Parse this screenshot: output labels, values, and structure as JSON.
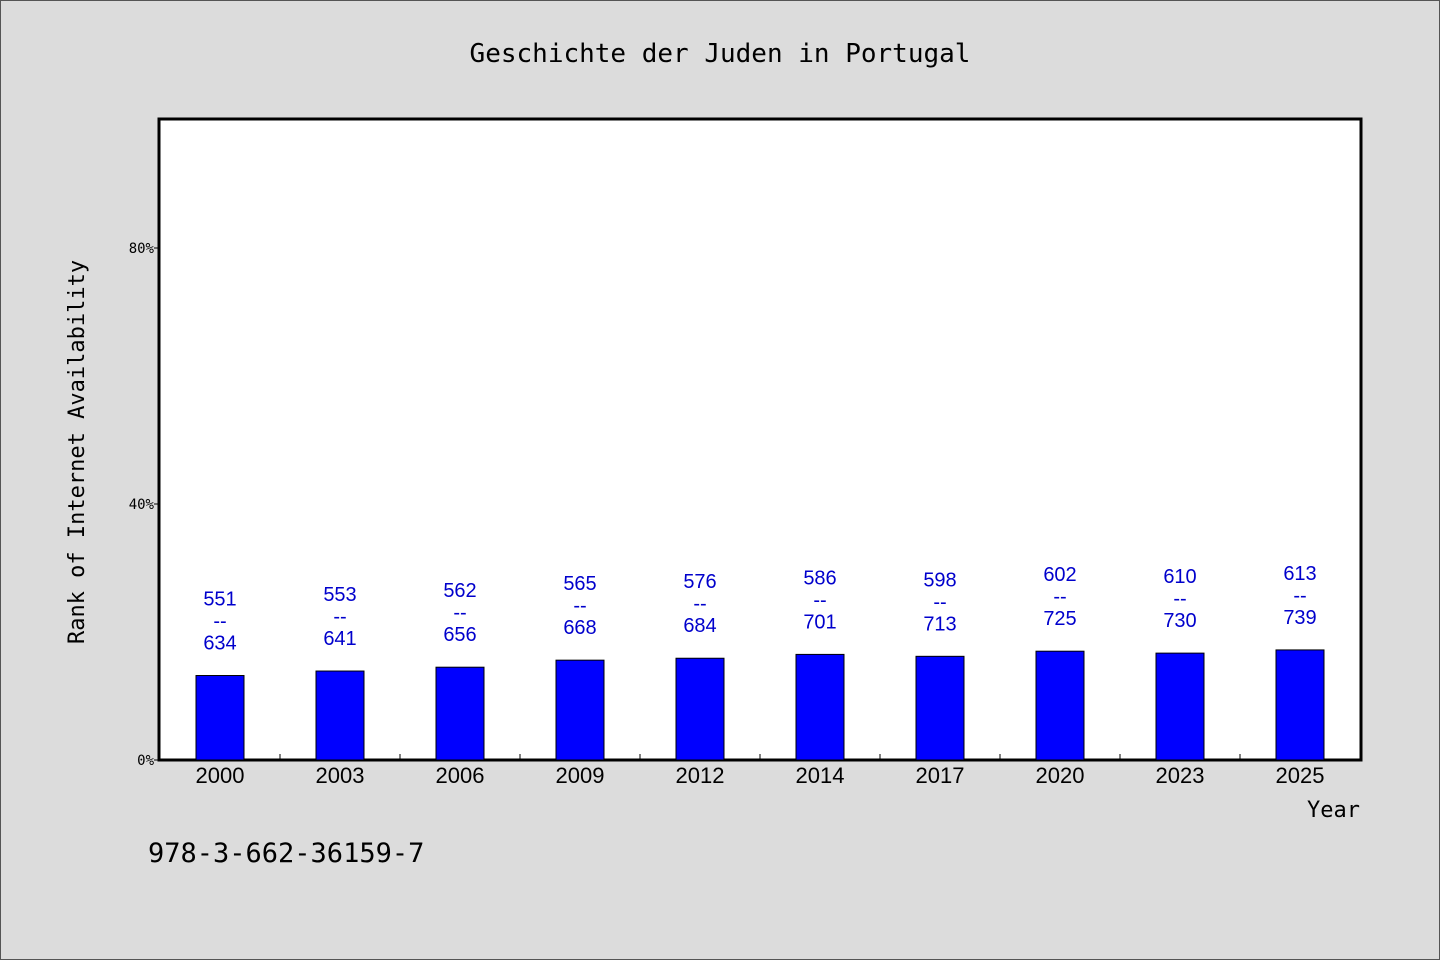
{
  "chart_data": {
    "type": "bar",
    "title": "Geschichte der Juden in Portugal",
    "xlabel": "Year",
    "ylabel": "Rank of Internet Availability",
    "categories": [
      "2000",
      "2003",
      "2006",
      "2009",
      "2012",
      "2014",
      "2017",
      "2020",
      "2023",
      "2025"
    ],
    "values": [
      13.2,
      13.9,
      14.5,
      15.6,
      15.9,
      16.5,
      16.2,
      17.0,
      16.7,
      17.2
    ],
    "labels": [
      {
        "top": "551",
        "mid": "--",
        "bottom": "634"
      },
      {
        "top": "553",
        "mid": "--",
        "bottom": "641"
      },
      {
        "top": "562",
        "mid": "--",
        "bottom": "656"
      },
      {
        "top": "565",
        "mid": "--",
        "bottom": "668"
      },
      {
        "top": "576",
        "mid": "--",
        "bottom": "684"
      },
      {
        "top": "586",
        "mid": "--",
        "bottom": "701"
      },
      {
        "top": "598",
        "mid": "--",
        "bottom": "713"
      },
      {
        "top": "602",
        "mid": "--",
        "bottom": "725"
      },
      {
        "top": "610",
        "mid": "--",
        "bottom": "730"
      },
      {
        "top": "613",
        "mid": "--",
        "bottom": "739"
      }
    ],
    "ylim": [
      0,
      100
    ],
    "yticks": [
      0,
      40,
      80
    ],
    "ytick_labels": [
      "0%",
      "40%",
      "80%"
    ],
    "grid": false,
    "colors": {
      "bar": "#0000ff",
      "label": "#0000cc",
      "background": "#dcdcdc",
      "plot_background": "#ffffff"
    }
  },
  "footer": {
    "isbn": "978-3-662-36159-7"
  }
}
